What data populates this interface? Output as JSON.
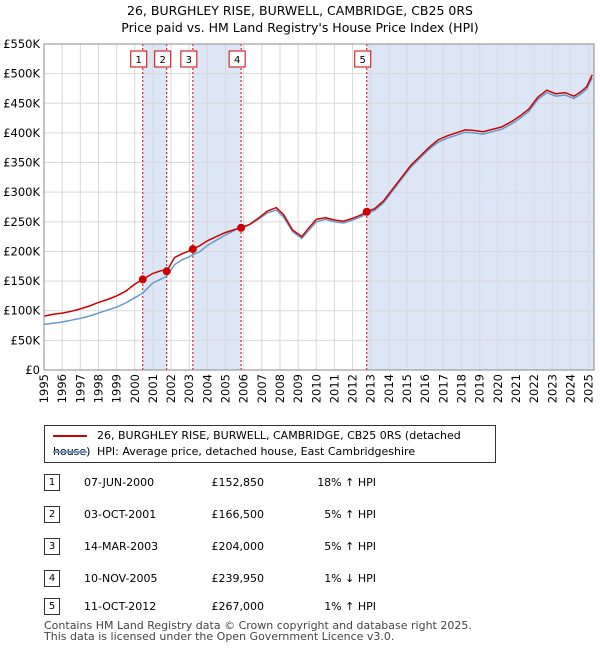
{
  "chart_data": {
    "type": "line",
    "title": "26, BURGHLEY RISE, BURWELL, CAMBRIDGE, CB25 0RS",
    "subtitle": "Price paid vs. HM Land Registry's House Price Index (HPI)",
    "xlabel": "",
    "ylabel": "",
    "xlim": [
      1995,
      2025.3
    ],
    "ylim": [
      0,
      550000
    ],
    "yticks": [
      0,
      50000,
      100000,
      150000,
      200000,
      250000,
      300000,
      350000,
      400000,
      450000,
      500000,
      550000
    ],
    "ytick_labels": [
      "£0",
      "£50K",
      "£100K",
      "£150K",
      "£200K",
      "£250K",
      "£300K",
      "£350K",
      "£400K",
      "£450K",
      "£500K",
      "£550K"
    ],
    "xticks": [
      1995,
      1996,
      1997,
      1998,
      1999,
      2000,
      2001,
      2002,
      2003,
      2004,
      2005,
      2006,
      2007,
      2008,
      2009,
      2010,
      2011,
      2012,
      2013,
      2014,
      2015,
      2016,
      2017,
      2018,
      2019,
      2020,
      2021,
      2022,
      2023,
      2024,
      2025
    ],
    "grid": true,
    "colors": {
      "property": "#cc0000",
      "hpi": "#6699cc",
      "shade": "#dde6f7",
      "vline": "#cc0000"
    },
    "series": [
      {
        "name": "26, BURGHLEY RISE, BURWELL, CAMBRIDGE, CB25 0RS (detached house)",
        "x": [
          1995.0,
          1995.5,
          1996.0,
          1996.5,
          1997.0,
          1997.5,
          1998.0,
          1998.5,
          1999.0,
          1999.5,
          2000.0,
          2000.44,
          2001.0,
          2001.5,
          2001.76,
          2002.2,
          2002.6,
          2003.0,
          2003.2,
          2003.6,
          2004.0,
          2004.5,
          2005.0,
          2005.4,
          2005.86,
          2006.3,
          2006.8,
          2007.3,
          2007.8,
          2008.2,
          2008.7,
          2009.2,
          2009.6,
          2010.0,
          2010.5,
          2011.0,
          2011.5,
          2012.0,
          2012.5,
          2012.78,
          2013.2,
          2013.7,
          2014.2,
          2014.7,
          2015.2,
          2015.7,
          2016.2,
          2016.7,
          2017.2,
          2017.7,
          2018.2,
          2018.7,
          2019.2,
          2019.7,
          2020.2,
          2020.7,
          2021.2,
          2021.7,
          2022.2,
          2022.7,
          2023.2,
          2023.7,
          2024.2,
          2024.6,
          2024.9,
          2025.2
        ],
        "y": [
          91000,
          94000,
          96000,
          99000,
          103000,
          108000,
          114000,
          119000,
          125000,
          133000,
          145000,
          152850,
          163000,
          168000,
          166500,
          190000,
          196000,
          201000,
          204000,
          210000,
          218000,
          225000,
          232000,
          236000,
          239950,
          245000,
          256000,
          268000,
          274000,
          262000,
          236000,
          225000,
          240000,
          254000,
          257000,
          253000,
          251000,
          256000,
          262000,
          267000,
          272000,
          285000,
          305000,
          325000,
          345000,
          360000,
          375000,
          388000,
          395000,
          400000,
          405000,
          404000,
          402000,
          406000,
          410000,
          418000,
          428000,
          440000,
          460000,
          472000,
          466000,
          468000,
          462000,
          470000,
          478000,
          498000
        ]
      },
      {
        "name": "HPI: Average price, detached house, East Cambridgeshire",
        "x": [
          1995.0,
          1995.5,
          1996.0,
          1996.5,
          1997.0,
          1997.5,
          1998.0,
          1998.5,
          1999.0,
          1999.5,
          2000.0,
          2000.44,
          2001.0,
          2001.5,
          2001.76,
          2002.2,
          2002.6,
          2003.0,
          2003.2,
          2003.6,
          2004.0,
          2004.5,
          2005.0,
          2005.4,
          2005.86,
          2006.3,
          2006.8,
          2007.3,
          2007.8,
          2008.2,
          2008.7,
          2009.2,
          2009.6,
          2010.0,
          2010.5,
          2011.0,
          2011.5,
          2012.0,
          2012.5,
          2012.78,
          2013.2,
          2013.7,
          2014.2,
          2014.7,
          2015.2,
          2015.7,
          2016.2,
          2016.7,
          2017.2,
          2017.7,
          2018.2,
          2018.7,
          2019.2,
          2019.7,
          2020.2,
          2020.7,
          2021.2,
          2021.7,
          2022.2,
          2022.7,
          2023.2,
          2023.7,
          2024.2,
          2024.6,
          2024.9,
          2025.2
        ],
        "y": [
          77000,
          79000,
          81000,
          84000,
          87000,
          91000,
          96000,
          101000,
          106000,
          113000,
          122000,
          129500,
          147000,
          154000,
          158500,
          178000,
          186000,
          191000,
          194300,
          200000,
          210000,
          219000,
          228000,
          234000,
          242400,
          245000,
          254000,
          265000,
          270000,
          258000,
          233000,
          222000,
          236000,
          250000,
          254000,
          250000,
          248000,
          253000,
          259000,
          264400,
          269000,
          282000,
          302000,
          322000,
          342000,
          357000,
          372000,
          384000,
          391000,
          396000,
          401000,
          400000,
          398000,
          402000,
          406000,
          414000,
          424000,
          436000,
          456000,
          468000,
          462000,
          464000,
          458000,
          466000,
          474000,
          493000
        ]
      }
    ],
    "sales": [
      {
        "label": "1",
        "x": 2000.44,
        "y": 152850
      },
      {
        "label": "2",
        "x": 2001.76,
        "y": 166500
      },
      {
        "label": "3",
        "x": 2003.2,
        "y": 204000
      },
      {
        "label": "4",
        "x": 2005.86,
        "y": 239950
      },
      {
        "label": "5",
        "x": 2012.78,
        "y": 267000
      }
    ],
    "shaded_ranges": [
      [
        2000.44,
        2001.76
      ],
      [
        2003.2,
        2005.86
      ],
      [
        2012.78,
        2025.3
      ]
    ]
  },
  "legend": {
    "property_label": "26, BURGHLEY RISE, BURWELL, CAMBRIDGE, CB25 0RS (detached house)",
    "hpi_label": "HPI: Average price, detached house, East Cambridgeshire"
  },
  "transactions": [
    {
      "num": "1",
      "date": "07-JUN-2000",
      "price": "£152,850",
      "hpi": "18% ↑ HPI"
    },
    {
      "num": "2",
      "date": "03-OCT-2001",
      "price": "£166,500",
      "hpi": "5% ↑ HPI"
    },
    {
      "num": "3",
      "date": "14-MAR-2003",
      "price": "£204,000",
      "hpi": "5% ↑ HPI"
    },
    {
      "num": "4",
      "date": "10-NOV-2005",
      "price": "£239,950",
      "hpi": "1% ↓ HPI"
    },
    {
      "num": "5",
      "date": "11-OCT-2012",
      "price": "£267,000",
      "hpi": "1% ↑ HPI"
    }
  ],
  "footer": {
    "line1": "Contains HM Land Registry data © Crown copyright and database right 2025.",
    "line2": "This data is licensed under the Open Government Licence v3.0."
  }
}
